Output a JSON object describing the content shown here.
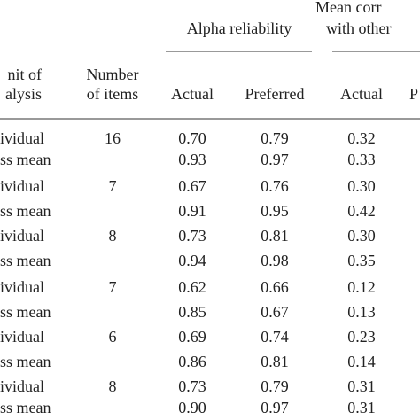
{
  "header": {
    "alpha": "Alpha reliability",
    "mean_corr": [
      "Mean corr",
      "with other"
    ],
    "unit": [
      "nit of",
      "alysis"
    ],
    "number": [
      "Number",
      "of items"
    ],
    "sub": [
      "Actual",
      "Preferred",
      "Actual",
      "P"
    ]
  },
  "table": {
    "rows": [
      [
        "ividual",
        "16",
        "0.70",
        "0.79",
        "0.32"
      ],
      [
        "ss mean",
        null,
        "0.93",
        "0.97",
        "0.33"
      ],
      [
        "ividual",
        "7",
        "0.67",
        "0.76",
        "0.30"
      ],
      [
        "ss mean",
        null,
        "0.91",
        "0.95",
        "0.42"
      ],
      [
        "ividual",
        "8",
        "0.73",
        "0.81",
        "0.30"
      ],
      [
        "ss mean",
        null,
        "0.94",
        "0.98",
        "0.35"
      ],
      [
        "ividual",
        "7",
        "0.62",
        "0.66",
        "0.12"
      ],
      [
        "ss mean",
        null,
        "0.85",
        "0.67",
        "0.13"
      ],
      [
        "ividual",
        "6",
        "0.69",
        "0.74",
        "0.23"
      ],
      [
        "ss mean",
        null,
        "0.86",
        "0.81",
        "0.14"
      ],
      [
        "ividual",
        "8",
        "0.73",
        "0.79",
        "0.31"
      ],
      [
        "ss mean",
        null,
        "0.90",
        "0.97",
        "0.31"
      ]
    ]
  }
}
